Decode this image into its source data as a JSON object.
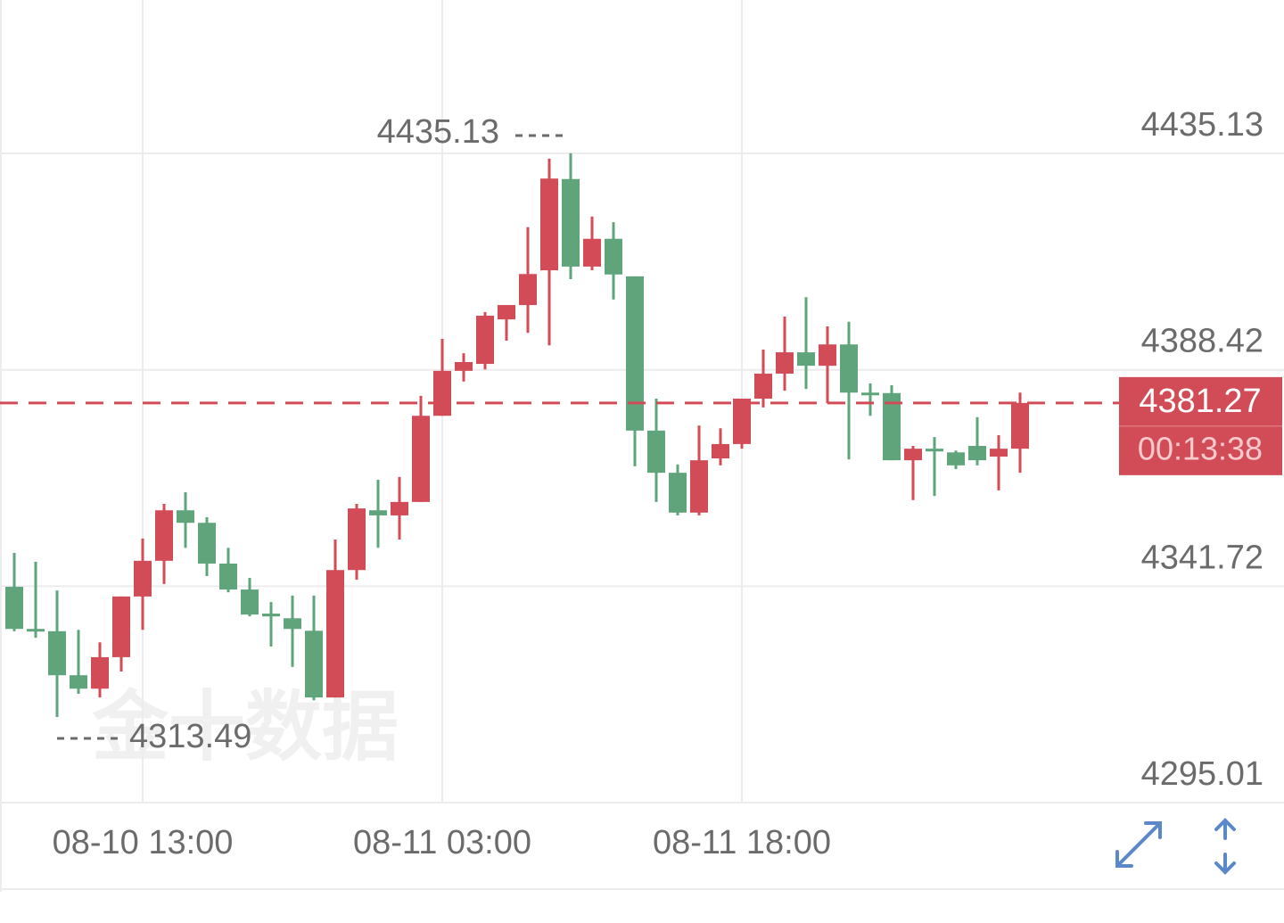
{
  "chart_data": {
    "type": "candlestick",
    "categories": [
      null,
      null,
      null,
      null,
      null,
      null,
      "08-10 13:00",
      null,
      null,
      null,
      null,
      null,
      null,
      null,
      null,
      null,
      null,
      null,
      null,
      null,
      "08-11 03:00",
      null,
      null,
      null,
      null,
      null,
      null,
      null,
      null,
      null,
      null,
      null,
      null,
      null,
      "08-11 18:00",
      null,
      null,
      null,
      null,
      null,
      null,
      null,
      null,
      null,
      null,
      null,
      null,
      null
    ],
    "open": [
      4341.6,
      4332.5,
      4332.0,
      4322.5,
      4319.6,
      4326.4,
      4339.5,
      4347.2,
      4358.1,
      4355.4,
      4346.6,
      4341.0,
      4335.8,
      4334.8,
      4332.1,
      4317.7,
      4345.2,
      4358.1,
      4357.0,
      4359.9,
      4378.5,
      4388.2,
      4389.7,
      4399.3,
      4402.4,
      4409.9,
      4429.6,
      4410.7,
      4416.7,
      4408.6,
      4375.3,
      4366.2,
      4357.6,
      4369.3,
      4372.4,
      4382.2,
      4387.6,
      4392.2,
      4389.3,
      4393.9,
      4383.5,
      4383.4,
      4368.9,
      4371.4,
      4370.6,
      4372.0,
      4369.7,
      4371.4
    ],
    "high": [
      4348.9,
      4347.0,
      4340.8,
      4332.3,
      4329.6,
      4339.5,
      4352.0,
      4359.5,
      4362.0,
      4356.6,
      4350.0,
      4343.5,
      4338.3,
      4339.7,
      4339.7,
      4351.8,
      4359.5,
      4364.7,
      4365.3,
      4382.8,
      4395.1,
      4392.0,
      4400.9,
      4402.4,
      4419.2,
      4434.0,
      4435.13,
      4421.5,
      4420.3,
      4408.6,
      4382.2,
      4368.0,
      4376.4,
      4375.8,
      4382.2,
      4392.8,
      4399.9,
      4404.1,
      4397.8,
      4398.8,
      4385.5,
      4385.1,
      4372.0,
      4373.9,
      4371.0,
      4378.2,
      4374.3,
      4383.5
    ],
    "low": [
      4332.0,
      4330.6,
      4313.49,
      4318.5,
      4317.7,
      4323.3,
      4332.3,
      4342.2,
      4350.0,
      4343.9,
      4340.4,
      4335.2,
      4328.7,
      4324.3,
      4317.1,
      4317.7,
      4343.1,
      4350.0,
      4351.8,
      4359.9,
      4378.5,
      4385.9,
      4388.5,
      4394.7,
      4396.4,
      4393.7,
      4408.0,
      4409.9,
      4403.6,
      4367.6,
      4359.9,
      4357.0,
      4357.0,
      4367.8,
      4371.4,
      4380.3,
      4383.9,
      4384.3,
      4381.2,
      4369.1,
      4378.5,
      4368.9,
      4360.3,
      4361.2,
      4367.0,
      4367.8,
      4362.4,
      4366.2
    ],
    "close": [
      4332.5,
      4332.0,
      4322.5,
      4319.6,
      4326.4,
      4339.5,
      4347.2,
      4358.1,
      4355.4,
      4346.6,
      4341.0,
      4335.6,
      4335.2,
      4332.5,
      4317.7,
      4345.2,
      4358.5,
      4357.0,
      4359.9,
      4378.5,
      4388.2,
      4390.1,
      4400.1,
      4402.4,
      4409.1,
      4429.7,
      4410.7,
      4416.7,
      4409.0,
      4375.3,
      4366.2,
      4357.6,
      4368.9,
      4372.4,
      4382.2,
      4387.6,
      4392.2,
      4389.3,
      4393.9,
      4383.5,
      4383.0,
      4368.9,
      4371.4,
      4370.8,
      4367.8,
      4368.9,
      4371.4,
      4381.27
    ],
    "up_color": "#d14c56",
    "down_color": "#5fa47a",
    "ylim": [
      4295.01,
      4468.24
    ],
    "yticks": [
      4295.01,
      4341.72,
      4388.42,
      4435.13
    ],
    "grid": true,
    "countdown": "00:13:38",
    "watermark": "金十数据"
  }
}
